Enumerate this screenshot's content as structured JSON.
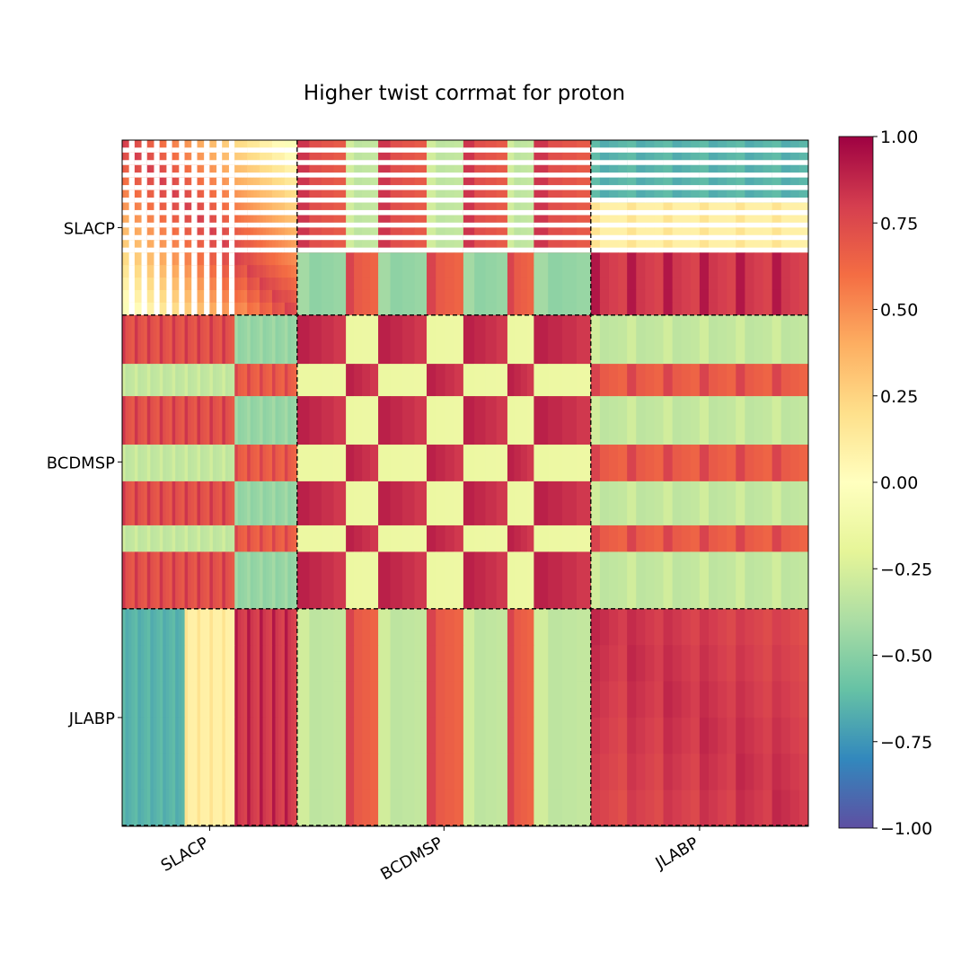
{
  "chart_data": {
    "type": "heatmap",
    "title": "Higher twist corrmat for proton",
    "xlabel": "",
    "ylabel": "",
    "datasets": [
      {
        "name": "SLACP",
        "tick_label": "SLACP",
        "share": 0.255
      },
      {
        "name": "BCDMSP",
        "tick_label": "BCDMSP",
        "share": 0.428
      },
      {
        "name": "JLABP",
        "tick_label": "JLABP",
        "share": 0.317
      }
    ],
    "value_range": [
      -1.0,
      1.0
    ],
    "colormap": "Spectral",
    "colormap_stops": [
      "#5e4fa2",
      "#3288bd",
      "#66c2a5",
      "#abdda4",
      "#e6f598",
      "#ffffbf",
      "#fee08b",
      "#fdae61",
      "#f46d43",
      "#d53e4f",
      "#9e0142"
    ],
    "colorbar_ticks": [
      "1.00",
      "0.75",
      "0.50",
      "0.25",
      "0.00",
      "−0.25",
      "−0.50",
      "−0.75",
      "−1.00"
    ],
    "colorbar_tick_values": [
      1.0,
      0.75,
      0.5,
      0.25,
      0.0,
      -0.25,
      -0.5,
      -0.75,
      -1.0
    ],
    "dataset_boundaries": "dashed black lines",
    "x_tick_rotation": "30 degrees",
    "structure": {
      "SLACP_x_groups": 14,
      "BCDMSP_blocks": [
        0.166,
        0.11,
        0.165,
        0.125,
        0.15,
        0.09,
        0.194
      ],
      "BCDMSP_block_group": [
        0,
        1,
        0,
        1,
        0,
        1,
        0
      ],
      "JLABP_blocks": 6,
      "within_dataset_correlation_high": true
    }
  }
}
